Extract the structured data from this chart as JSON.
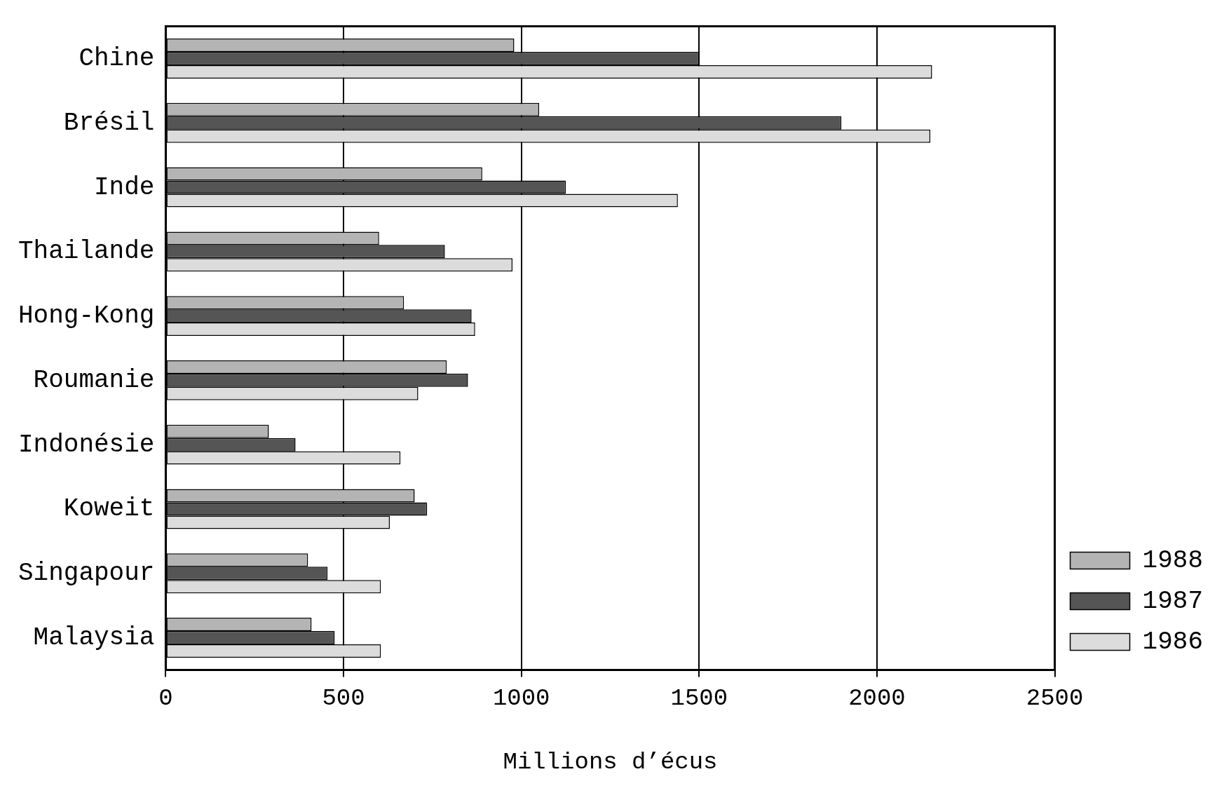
{
  "chart_data": {
    "type": "bar",
    "orientation": "horizontal",
    "xlabel": "Millions d’écus",
    "categories": [
      "Chine",
      "Brésil",
      "Inde",
      "Thailande",
      "Hong-Kong",
      "Roumanie",
      "Indonésie",
      "Koweit",
      "Singapour",
      "Malaysia"
    ],
    "series": [
      {
        "name": "1988",
        "color": "#b4b4b4",
        "values": [
          980,
          1050,
          890,
          600,
          670,
          790,
          290,
          700,
          400,
          410
        ]
      },
      {
        "name": "1987",
        "color": "#555555",
        "values": [
          1500,
          1900,
          1125,
          785,
          860,
          850,
          365,
          735,
          455,
          475
        ]
      },
      {
        "name": "1986",
        "color": "#dcdcdc",
        "values": [
          2155,
          2150,
          1440,
          975,
          870,
          710,
          660,
          630,
          605,
          605
        ]
      }
    ],
    "xlim": [
      0,
      2500
    ],
    "xticks": [
      0,
      500,
      1000,
      1500,
      2000,
      2500
    ],
    "grid": "x",
    "legend": "bottom right"
  }
}
